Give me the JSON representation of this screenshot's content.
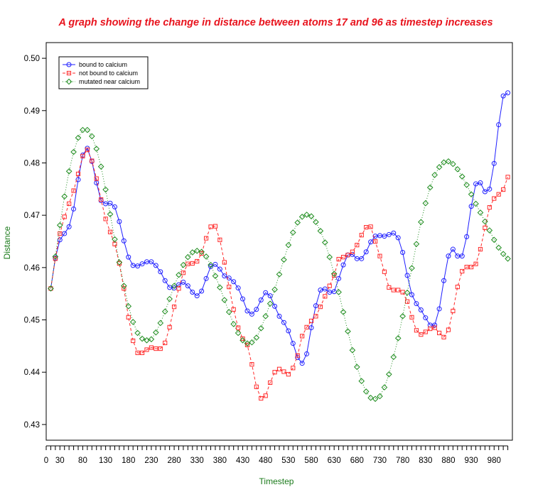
{
  "chart_data": {
    "type": "line",
    "title": "A graph showing the change in distance between atoms 17 and 96 as timestep increases",
    "xlabel": "Timestep",
    "ylabel": "Distance",
    "xlim": [
      0,
      1020
    ],
    "ylim": [
      0.427,
      0.503
    ],
    "x_tick_labels": [
      0,
      30,
      80,
      130,
      180,
      230,
      280,
      330,
      380,
      430,
      480,
      530,
      580,
      630,
      680,
      730,
      780,
      830,
      880,
      930,
      980
    ],
    "y_tick_labels": [
      0.43,
      0.44,
      0.45,
      0.46,
      0.47,
      0.48,
      0.49,
      0.5
    ],
    "legend_position": "top-left",
    "colors": {
      "title": "#e8141e",
      "axis_label": "#1a7a1a"
    },
    "x": [
      10,
      20,
      30,
      40,
      50,
      60,
      70,
      80,
      90,
      100,
      110,
      120,
      130,
      140,
      150,
      160,
      170,
      180,
      190,
      200,
      210,
      220,
      230,
      240,
      250,
      260,
      270,
      280,
      290,
      300,
      310,
      320,
      330,
      340,
      350,
      360,
      370,
      380,
      390,
      400,
      410,
      420,
      430,
      440,
      450,
      460,
      470,
      480,
      490,
      500,
      510,
      520,
      530,
      540,
      550,
      560,
      570,
      580,
      590,
      600,
      610,
      620,
      630,
      640,
      650,
      660,
      670,
      680,
      690,
      700,
      710,
      720,
      730,
      740,
      750,
      760,
      770,
      780,
      790,
      800,
      810,
      820,
      830,
      840,
      850,
      860,
      870,
      880,
      890,
      900,
      910,
      920,
      930,
      940,
      950,
      960,
      970,
      980,
      990,
      1000,
      1010
    ],
    "series": [
      {
        "name": "bound to calcium",
        "color": "#1f1fff",
        "line": "solid",
        "marker": "circle",
        "values": [
          0.456,
          0.4618,
          0.4653,
          0.4665,
          0.4678,
          0.4712,
          0.4768,
          0.4815,
          0.4828,
          0.4803,
          0.4762,
          0.4728,
          0.4722,
          0.4723,
          0.4716,
          0.4688,
          0.4651,
          0.462,
          0.4604,
          0.4603,
          0.4607,
          0.4611,
          0.4611,
          0.4604,
          0.4592,
          0.4575,
          0.4562,
          0.4561,
          0.4567,
          0.4572,
          0.4565,
          0.4553,
          0.4546,
          0.4555,
          0.4579,
          0.4602,
          0.4606,
          0.4597,
          0.4584,
          0.458,
          0.4573,
          0.4561,
          0.454,
          0.4517,
          0.4511,
          0.452,
          0.4538,
          0.4552,
          0.4546,
          0.4526,
          0.4507,
          0.4495,
          0.4479,
          0.4455,
          0.4428,
          0.4417,
          0.4435,
          0.4485,
          0.4527,
          0.4557,
          0.4559,
          0.4553,
          0.4554,
          0.4579,
          0.4605,
          0.4624,
          0.4625,
          0.4617,
          0.4617,
          0.463,
          0.4649,
          0.466,
          0.4661,
          0.466,
          0.4663,
          0.4666,
          0.4657,
          0.4629,
          0.4585,
          0.4548,
          0.4531,
          0.4519,
          0.4504,
          0.449,
          0.449,
          0.4521,
          0.4575,
          0.4622,
          0.4635,
          0.4622,
          0.4622,
          0.4659,
          0.4717,
          0.476,
          0.4762,
          0.4745,
          0.475,
          0.4799,
          0.4873,
          0.4928,
          0.4934
        ]
      },
      {
        "name": "not bound to calcium",
        "color": "#ff2a2a",
        "line": "dashed",
        "marker": "square",
        "values": [
          0.456,
          0.4617,
          0.4665,
          0.4697,
          0.4722,
          0.4747,
          0.4779,
          0.4813,
          0.4825,
          0.4804,
          0.477,
          0.473,
          0.4693,
          0.4668,
          0.4645,
          0.4608,
          0.456,
          0.4505,
          0.446,
          0.4437,
          0.4437,
          0.4443,
          0.4447,
          0.4445,
          0.4445,
          0.4456,
          0.4486,
          0.4525,
          0.456,
          0.459,
          0.4607,
          0.4608,
          0.4612,
          0.4627,
          0.4656,
          0.4678,
          0.4679,
          0.4653,
          0.461,
          0.4563,
          0.452,
          0.4485,
          0.4464,
          0.4452,
          0.4415,
          0.4372,
          0.435,
          0.4355,
          0.438,
          0.44,
          0.4406,
          0.4401,
          0.4396,
          0.4408,
          0.4432,
          0.4469,
          0.4486,
          0.4498,
          0.4507,
          0.4525,
          0.4545,
          0.4565,
          0.4585,
          0.4616,
          0.462,
          0.4624,
          0.463,
          0.4643,
          0.4662,
          0.4677,
          0.4678,
          0.465,
          0.4622,
          0.4592,
          0.4562,
          0.4557,
          0.4557,
          0.4553,
          0.4535,
          0.4505,
          0.448,
          0.4472,
          0.4477,
          0.4483,
          0.4485,
          0.4475,
          0.4467,
          0.4481,
          0.4517,
          0.4563,
          0.4593,
          0.4601,
          0.4601,
          0.4607,
          0.4635,
          0.4676,
          0.4715,
          0.4732,
          0.474,
          0.4749,
          0.4773
        ]
      },
      {
        "name": "mutated near calcium",
        "color": "#1e8c1e",
        "line": "dotted",
        "marker": "diamond",
        "values": [
          0.456,
          0.4621,
          0.4681,
          0.4736,
          0.4784,
          0.4821,
          0.4848,
          0.4863,
          0.4863,
          0.4851,
          0.4827,
          0.4793,
          0.4749,
          0.4702,
          0.4654,
          0.461,
          0.4565,
          0.4526,
          0.4496,
          0.4475,
          0.4464,
          0.4461,
          0.4463,
          0.4476,
          0.4494,
          0.4516,
          0.454,
          0.4565,
          0.4586,
          0.4605,
          0.462,
          0.4629,
          0.4632,
          0.463,
          0.4621,
          0.4605,
          0.4584,
          0.4562,
          0.4538,
          0.4515,
          0.4492,
          0.4475,
          0.4461,
          0.4455,
          0.4457,
          0.4466,
          0.4484,
          0.4507,
          0.4531,
          0.4558,
          0.4587,
          0.4615,
          0.4643,
          0.4667,
          0.4686,
          0.4697,
          0.4701,
          0.4698,
          0.4687,
          0.467,
          0.4648,
          0.462,
          0.4588,
          0.4553,
          0.4515,
          0.4478,
          0.4442,
          0.441,
          0.4383,
          0.4363,
          0.4351,
          0.4349,
          0.4354,
          0.4371,
          0.4396,
          0.4429,
          0.4465,
          0.4507,
          0.4552,
          0.4599,
          0.4645,
          0.4687,
          0.4723,
          0.4753,
          0.4777,
          0.4792,
          0.4801,
          0.4803,
          0.4798,
          0.4788,
          0.4774,
          0.4758,
          0.474,
          0.4722,
          0.4705,
          0.4688,
          0.4671,
          0.4653,
          0.4638,
          0.4626,
          0.4617
        ]
      }
    ]
  }
}
